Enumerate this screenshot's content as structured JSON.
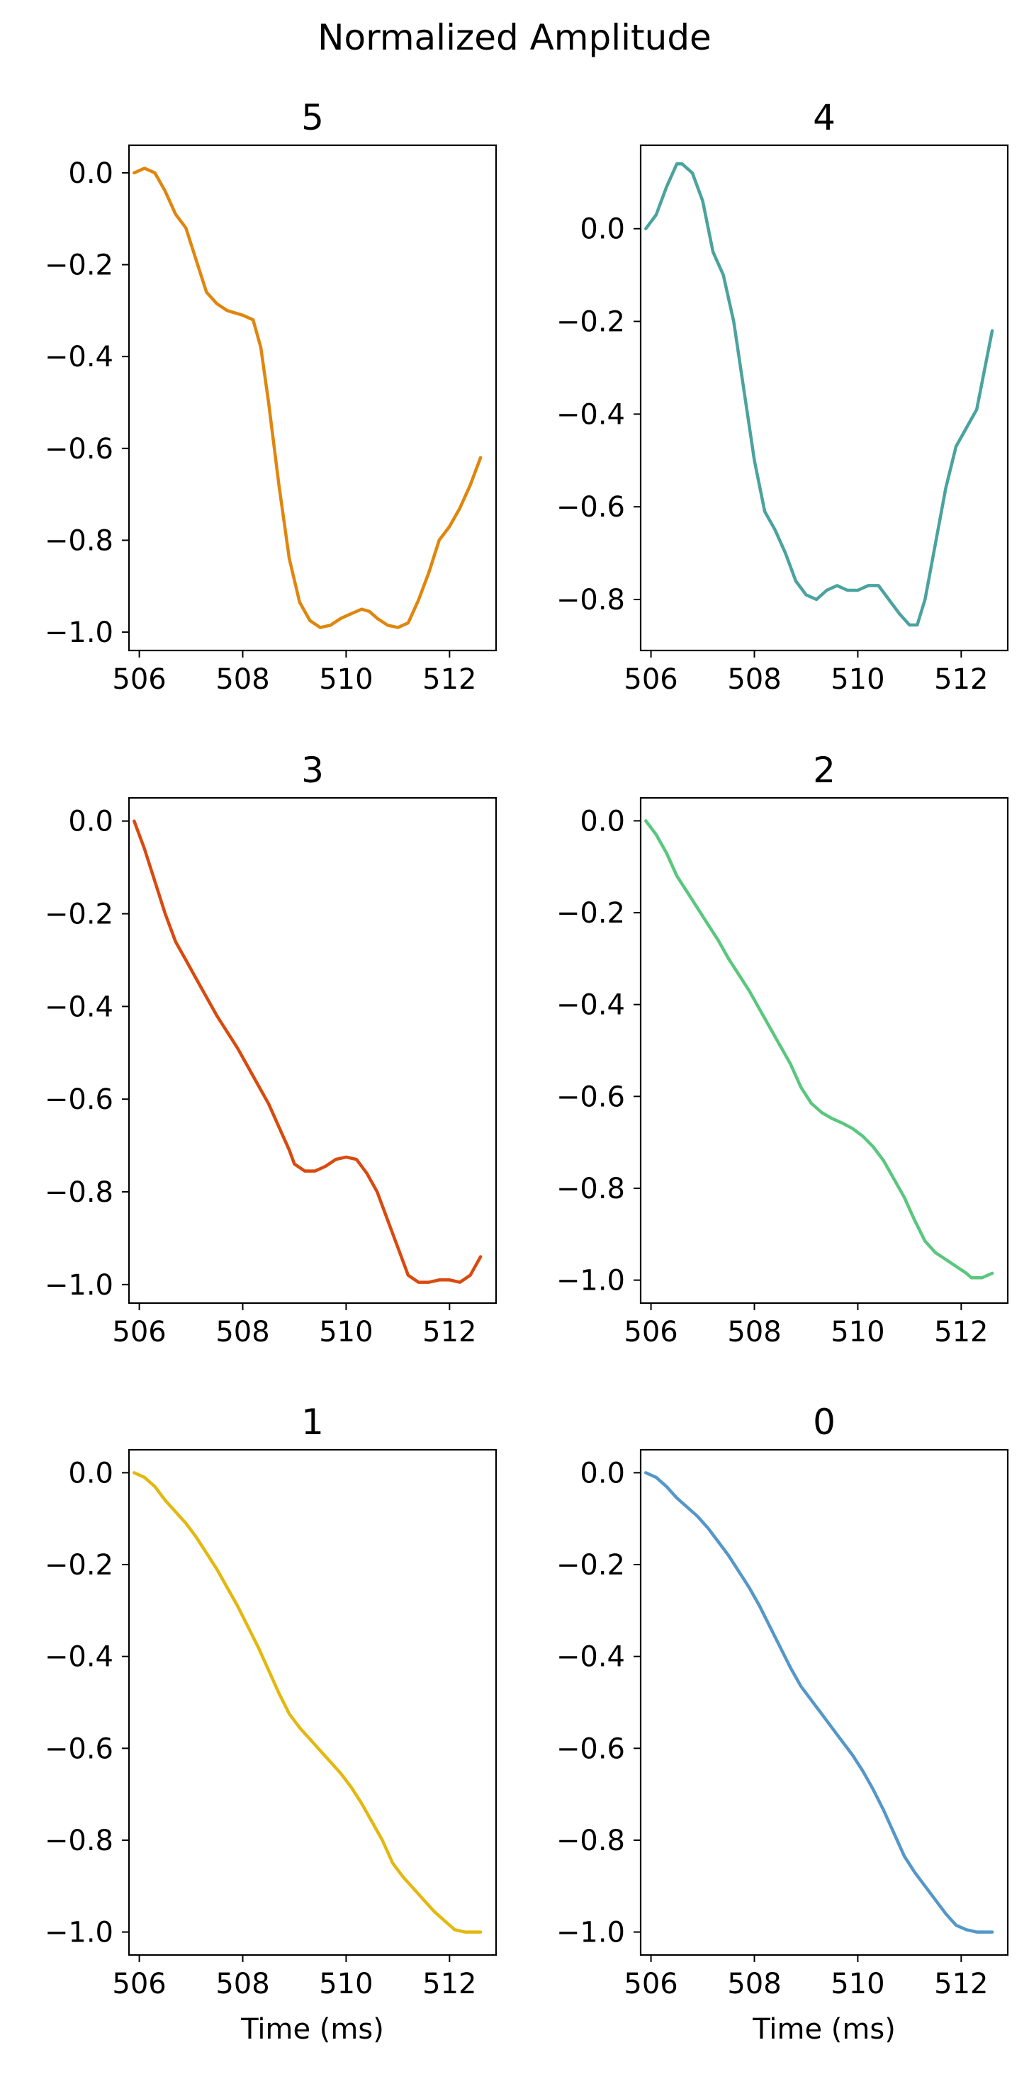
{
  "figure": {
    "title": "Normalized Amplitude"
  },
  "chart_data": [
    {
      "type": "line",
      "title": "5",
      "xlabel": "",
      "ylabel": "",
      "xlim": [
        505.8,
        512.9
      ],
      "ylim": [
        -1.04,
        0.06
      ],
      "xticks": [
        506,
        508,
        510,
        512
      ],
      "yticks": [
        0.0,
        -0.2,
        -0.4,
        -0.6,
        -0.8,
        -1.0
      ],
      "grid": false,
      "color": "#e0860e",
      "series": [
        {
          "x": [
            505.9,
            506.1,
            506.3,
            506.5,
            506.7,
            506.9,
            507.1,
            507.3,
            507.5,
            507.7,
            508.0,
            508.2,
            508.35,
            508.5,
            508.7,
            508.9,
            509.1,
            509.3,
            509.5,
            509.7,
            509.9,
            510.1,
            510.3,
            510.45,
            510.6,
            510.8,
            511.0,
            511.2,
            511.4,
            511.6,
            511.8,
            512.0,
            512.2,
            512.4,
            512.6
          ],
          "y": [
            0.0,
            0.01,
            0.0,
            -0.04,
            -0.09,
            -0.12,
            -0.19,
            -0.26,
            -0.285,
            -0.3,
            -0.31,
            -0.32,
            -0.38,
            -0.5,
            -0.68,
            -0.84,
            -0.935,
            -0.975,
            -0.99,
            -0.985,
            -0.97,
            -0.96,
            -0.95,
            -0.955,
            -0.97,
            -0.985,
            -0.99,
            -0.98,
            -0.93,
            -0.87,
            -0.8,
            -0.77,
            -0.73,
            -0.68,
            -0.62
          ]
        }
      ]
    },
    {
      "type": "line",
      "title": "4",
      "xlabel": "",
      "ylabel": "",
      "xlim": [
        505.8,
        512.9
      ],
      "ylim": [
        -0.91,
        0.18
      ],
      "xticks": [
        506,
        508,
        510,
        512
      ],
      "yticks": [
        0.0,
        -0.2,
        -0.4,
        -0.6,
        -0.8
      ],
      "grid": false,
      "color": "#4aa39e",
      "series": [
        {
          "x": [
            505.9,
            506.1,
            506.3,
            506.5,
            506.6,
            506.8,
            507.0,
            507.2,
            507.4,
            507.6,
            507.8,
            508.0,
            508.2,
            508.4,
            508.6,
            508.8,
            509.0,
            509.2,
            509.4,
            509.6,
            509.8,
            510.0,
            510.2,
            510.4,
            510.6,
            510.8,
            511.0,
            511.15,
            511.3,
            511.5,
            511.7,
            511.9,
            512.1,
            512.3,
            512.6
          ],
          "y": [
            0.0,
            0.03,
            0.09,
            0.14,
            0.14,
            0.12,
            0.06,
            -0.05,
            -0.1,
            -0.2,
            -0.35,
            -0.5,
            -0.61,
            -0.65,
            -0.7,
            -0.76,
            -0.79,
            -0.8,
            -0.78,
            -0.77,
            -0.78,
            -0.78,
            -0.77,
            -0.77,
            -0.8,
            -0.83,
            -0.855,
            -0.855,
            -0.8,
            -0.68,
            -0.56,
            -0.47,
            -0.43,
            -0.39,
            -0.22
          ]
        }
      ]
    },
    {
      "type": "line",
      "title": "3",
      "xlabel": "",
      "ylabel": "",
      "xlim": [
        505.8,
        512.9
      ],
      "ylim": [
        -1.04,
        0.05
      ],
      "xticks": [
        506,
        508,
        510,
        512
      ],
      "yticks": [
        0.0,
        -0.2,
        -0.4,
        -0.6,
        -0.8,
        -1.0
      ],
      "grid": false,
      "color": "#d94a0f",
      "series": [
        {
          "x": [
            505.9,
            506.1,
            506.3,
            506.5,
            506.7,
            506.9,
            507.1,
            507.3,
            507.5,
            507.7,
            507.9,
            508.1,
            508.3,
            508.5,
            508.7,
            508.9,
            509.0,
            509.2,
            509.4,
            509.6,
            509.8,
            510.0,
            510.2,
            510.4,
            510.6,
            510.8,
            511.0,
            511.2,
            511.4,
            511.6,
            511.8,
            512.0,
            512.2,
            512.4,
            512.6
          ],
          "y": [
            0.0,
            -0.06,
            -0.13,
            -0.2,
            -0.26,
            -0.3,
            -0.34,
            -0.38,
            -0.42,
            -0.455,
            -0.49,
            -0.53,
            -0.57,
            -0.61,
            -0.66,
            -0.71,
            -0.74,
            -0.755,
            -0.755,
            -0.745,
            -0.73,
            -0.725,
            -0.73,
            -0.76,
            -0.8,
            -0.86,
            -0.92,
            -0.98,
            -0.995,
            -0.995,
            -0.99,
            -0.99,
            -0.995,
            -0.98,
            -0.94
          ]
        }
      ]
    },
    {
      "type": "line",
      "title": "2",
      "xlabel": "",
      "ylabel": "",
      "xlim": [
        505.8,
        512.9
      ],
      "ylim": [
        -1.05,
        0.05
      ],
      "xticks": [
        506,
        508,
        510,
        512
      ],
      "yticks": [
        0.0,
        -0.2,
        -0.4,
        -0.6,
        -0.8,
        -1.0
      ],
      "grid": false,
      "color": "#5ac77f",
      "series": [
        {
          "x": [
            505.9,
            506.1,
            506.3,
            506.5,
            506.7,
            506.9,
            507.1,
            507.3,
            507.5,
            507.7,
            507.9,
            508.1,
            508.3,
            508.5,
            508.7,
            508.9,
            509.1,
            509.3,
            509.5,
            509.7,
            509.9,
            510.1,
            510.3,
            510.5,
            510.7,
            510.9,
            511.1,
            511.3,
            511.5,
            511.7,
            511.9,
            512.1,
            512.2,
            512.4,
            512.6
          ],
          "y": [
            0.0,
            -0.03,
            -0.07,
            -0.12,
            -0.155,
            -0.19,
            -0.225,
            -0.26,
            -0.3,
            -0.335,
            -0.37,
            -0.41,
            -0.45,
            -0.49,
            -0.53,
            -0.58,
            -0.615,
            -0.635,
            -0.648,
            -0.658,
            -0.67,
            -0.687,
            -0.71,
            -0.74,
            -0.78,
            -0.82,
            -0.87,
            -0.915,
            -0.94,
            -0.955,
            -0.97,
            -0.985,
            -0.995,
            -0.995,
            -0.985
          ]
        }
      ]
    },
    {
      "type": "line",
      "title": "1",
      "xlabel": "Time (ms)",
      "ylabel": "",
      "xlim": [
        505.8,
        512.9
      ],
      "ylim": [
        -1.05,
        0.05
      ],
      "xticks": [
        506,
        508,
        510,
        512
      ],
      "yticks": [
        0.0,
        -0.2,
        -0.4,
        -0.6,
        -0.8,
        -1.0
      ],
      "grid": false,
      "color": "#e3b80f",
      "series": [
        {
          "x": [
            505.9,
            506.1,
            506.3,
            506.5,
            506.7,
            506.9,
            507.1,
            507.3,
            507.5,
            507.7,
            507.9,
            508.1,
            508.3,
            508.5,
            508.7,
            508.9,
            509.1,
            509.3,
            509.5,
            509.7,
            509.9,
            510.1,
            510.3,
            510.5,
            510.7,
            510.9,
            511.1,
            511.3,
            511.5,
            511.7,
            511.9,
            512.1,
            512.3,
            512.5,
            512.6
          ],
          "y": [
            0.0,
            -0.01,
            -0.03,
            -0.06,
            -0.085,
            -0.11,
            -0.14,
            -0.175,
            -0.21,
            -0.25,
            -0.29,
            -0.335,
            -0.38,
            -0.43,
            -0.48,
            -0.525,
            -0.555,
            -0.58,
            -0.605,
            -0.63,
            -0.655,
            -0.685,
            -0.72,
            -0.76,
            -0.8,
            -0.85,
            -0.88,
            -0.905,
            -0.93,
            -0.955,
            -0.975,
            -0.995,
            -1.0,
            -1.0,
            -1.0
          ]
        }
      ]
    },
    {
      "type": "line",
      "title": "0",
      "xlabel": "Time (ms)",
      "ylabel": "",
      "xlim": [
        505.8,
        512.9
      ],
      "ylim": [
        -1.05,
        0.05
      ],
      "xticks": [
        506,
        508,
        510,
        512
      ],
      "yticks": [
        0.0,
        -0.2,
        -0.4,
        -0.6,
        -0.8,
        -1.0
      ],
      "grid": false,
      "color": "#5597c8",
      "series": [
        {
          "x": [
            505.9,
            506.1,
            506.3,
            506.5,
            506.7,
            506.9,
            507.1,
            507.3,
            507.5,
            507.7,
            507.9,
            508.1,
            508.3,
            508.5,
            508.7,
            508.9,
            509.1,
            509.3,
            509.5,
            509.7,
            509.9,
            510.1,
            510.3,
            510.5,
            510.7,
            510.9,
            511.1,
            511.3,
            511.5,
            511.7,
            511.9,
            512.1,
            512.3,
            512.5,
            512.6
          ],
          "y": [
            0.0,
            -0.01,
            -0.03,
            -0.055,
            -0.075,
            -0.095,
            -0.12,
            -0.15,
            -0.18,
            -0.215,
            -0.25,
            -0.29,
            -0.335,
            -0.38,
            -0.425,
            -0.465,
            -0.495,
            -0.525,
            -0.555,
            -0.585,
            -0.615,
            -0.65,
            -0.69,
            -0.735,
            -0.785,
            -0.835,
            -0.87,
            -0.9,
            -0.93,
            -0.96,
            -0.985,
            -0.995,
            -1.0,
            -1.0,
            -1.0
          ]
        }
      ]
    }
  ]
}
